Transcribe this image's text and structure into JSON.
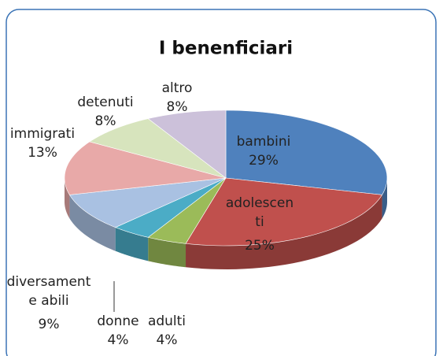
{
  "chart_data": {
    "type": "pie3d",
    "title": "I benenficiari",
    "categories": [
      "bambini",
      "adolescenti",
      "adulti",
      "donne",
      "diversamente abili",
      "immigrati",
      "detenuti",
      "altro"
    ],
    "values": [
      29,
      25,
      4,
      4,
      9,
      13,
      8,
      8
    ],
    "value_labels": [
      "29%",
      "25%",
      "4%",
      "4%",
      "9%",
      "13%",
      "8%",
      "8%"
    ],
    "colors": [
      "#4f81bd",
      "#c0504d",
      "#9bbb59",
      "#4bacc6",
      "#a9c1e2",
      "#e8a9a8",
      "#d7e4bd",
      "#ccc1da"
    ]
  }
}
